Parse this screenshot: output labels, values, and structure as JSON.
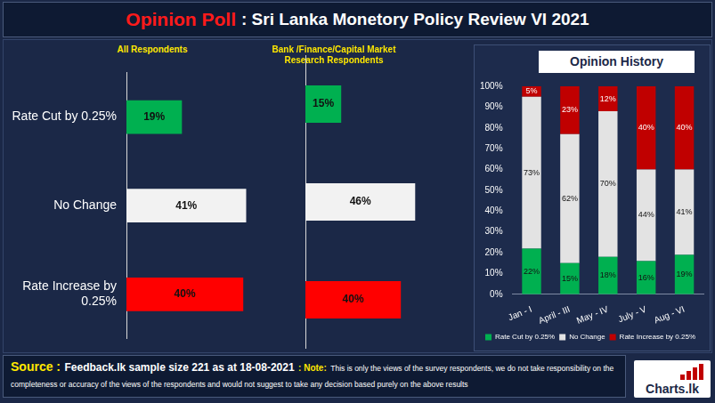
{
  "header": {
    "title_parts": [
      "Opinion Poll",
      ": Sri Lanka Monetory Policy Review VI 2021"
    ]
  },
  "footer": {
    "source_label": "Source :",
    "source": "Feedback.lk sample size 221 as at 18-08-2021",
    "note_label": ": Note:",
    "note": "This is only the views of the survey respondents, we do not take responsibility on the completeness or accuracy of the views of the respondents and would not suggest to take any decision based purely on the above results",
    "logo": "Charts.lk"
  },
  "chart_data": [
    {
      "type": "bar",
      "title": "All Respondents",
      "orientation": "horizontal",
      "categories": [
        "Rate Cut by 0.25%",
        "No Change",
        "Rate Increase by 0.25%"
      ],
      "values": [
        19,
        41,
        40
      ],
      "value_labels": [
        "19%",
        "41%",
        "40%"
      ],
      "colors": [
        "#00b050",
        "#f2f2f2",
        "#ff0000"
      ],
      "data_labels": true,
      "xlim": [
        0,
        50
      ],
      "tick_labels": "y",
      "grid": false
    },
    {
      "type": "bar",
      "title": "Bank /Finance/Capital Market Research Respondents",
      "orientation": "horizontal",
      "categories": [
        "Rate Cut by 0.25%",
        "No Change",
        "Rate Increase by 0.25%"
      ],
      "values": [
        15,
        46,
        40
      ],
      "value_labels": [
        "15%",
        "46%",
        "40%"
      ],
      "colors": [
        "#00b050",
        "#f2f2f2",
        "#ff0000"
      ],
      "data_labels": true,
      "xlim": [
        0,
        50
      ],
      "tick_labels": false,
      "grid": false
    },
    {
      "type": "bar",
      "title": "Opinion History",
      "stacked": true,
      "categories": [
        "Jan - I",
        "April - III",
        "May - IV",
        "July - V",
        "Aug - VI"
      ],
      "series": [
        {
          "name": "Rate Cut by 0.25%",
          "color": "#00b050",
          "values": [
            22,
            15,
            18,
            16,
            19
          ],
          "value_labels": [
            "22%",
            "15%",
            "18%",
            "16%",
            "19%"
          ]
        },
        {
          "name": "No Change",
          "color": "#e3e3e3",
          "values": [
            73,
            62,
            70,
            44,
            41
          ],
          "value_labels": [
            "73%",
            "62%",
            "70%",
            "44%",
            "41%"
          ]
        },
        {
          "name": "Rate Increase by 0.25%",
          "color": "#c00000",
          "values": [
            5,
            23,
            12,
            40,
            40
          ],
          "value_labels": [
            "5%",
            "23%",
            "12%",
            "40%",
            "40%"
          ]
        }
      ],
      "ylim": [
        0,
        100
      ],
      "yticks": [
        {
          "value": 0,
          "label": "0%"
        },
        {
          "value": 10,
          "label": "10%"
        },
        {
          "value": 20,
          "label": "20%"
        },
        {
          "value": 30,
          "label": "30%"
        },
        {
          "value": 40,
          "label": "40%"
        },
        {
          "value": 50,
          "label": "50%"
        },
        {
          "value": 60,
          "label": "60%"
        },
        {
          "value": 70,
          "label": "70%"
        },
        {
          "value": 80,
          "label": "80%"
        },
        {
          "value": 90,
          "label": "90%"
        },
        {
          "value": 100,
          "label": "100%"
        }
      ],
      "data_labels": true,
      "legend": "bottom",
      "grid": false
    }
  ]
}
